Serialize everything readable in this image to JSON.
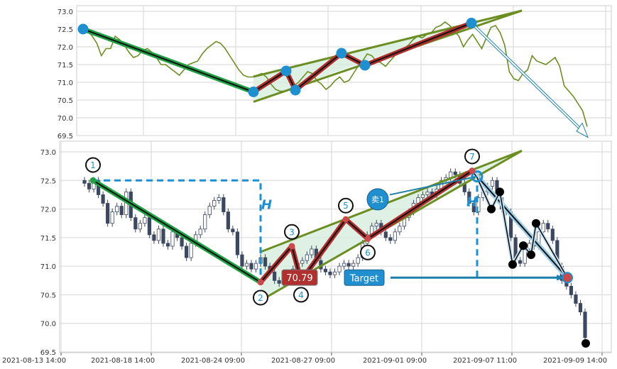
{
  "colors": {
    "green_line": "#6b8e23",
    "pattern_green": "#22a045",
    "pattern_red": "#b03030",
    "marker_blue": "#1f8fd0",
    "candle_dark": "#3c4860",
    "fill_light": "#d7eedf",
    "arrow_blue": "#1e7fa8",
    "grid": "#d6d6d6"
  },
  "chart_data": [
    {
      "type": "line",
      "title": "",
      "ylim": [
        69.5,
        73.0
      ],
      "yticks": [
        "73.0",
        "72.5",
        "72.0",
        "71.5",
        "71.0",
        "70.5",
        "70.0",
        "69.5"
      ],
      "series": [
        {
          "values": [
            72.5,
            72.45,
            72.3,
            72.1,
            71.75,
            71.95,
            71.95,
            72.3,
            72.2,
            72.05,
            71.85,
            71.7,
            71.75,
            71.9,
            71.95,
            71.85,
            71.7,
            71.5,
            71.5,
            71.4,
            71.3,
            71.2,
            71.35,
            71.5,
            71.55,
            71.6,
            71.8,
            71.95,
            72.05,
            72.15,
            72.1,
            71.95,
            71.75,
            71.55,
            71.35,
            71.2,
            71.15,
            71.15,
            71.2,
            71.25,
            71.15,
            70.95,
            70.8,
            70.75,
            70.75,
            70.8,
            70.9,
            71.0,
            71.15,
            71.3,
            71.25,
            71.05,
            70.95,
            70.8,
            70.9,
            71.05,
            71.15,
            71.0,
            71.05,
            71.25,
            71.45,
            71.6,
            71.8,
            71.75,
            71.6,
            71.55,
            71.45,
            71.6,
            71.75,
            71.9,
            71.95,
            72.05,
            72.2,
            72.3,
            72.25,
            72.35,
            72.4,
            72.55,
            72.6,
            72.7,
            72.6,
            72.45,
            72.3,
            72.0,
            72.2,
            72.35,
            72.15,
            71.95,
            72.25,
            72.55,
            72.6,
            72.4,
            72.05,
            71.3,
            71.1,
            71.05,
            71.25,
            71.35,
            71.75,
            71.6,
            71.55,
            71.5,
            71.6,
            71.7,
            71.45,
            70.9,
            70.75,
            70.6,
            70.4,
            70.2,
            69.75
          ]
        }
      ],
      "pattern": {
        "points": [
          [
            72.5
          ],
          [
            70.73
          ],
          [
            71.32
          ],
          [
            70.78
          ],
          [
            71.82
          ],
          [
            71.48
          ],
          [
            72.67
          ]
        ],
        "target_arrow": true
      }
    },
    {
      "type": "candlestick",
      "title": "",
      "ylim": [
        69.5,
        73.0
      ],
      "yticks": [
        "73.0",
        "72.5",
        "72.0",
        "71.5",
        "71.0",
        "70.5",
        "70.0",
        "69.5"
      ],
      "xticks": [
        "2021-08-13 14:00",
        "2021-08-18 14:00",
        "2021-08-24 09:00",
        "2021-08-27 09:00",
        "2021-09-01 09:00",
        "2021-09-07 11:00",
        "2021-09-09 14:00"
      ],
      "closes": [
        72.45,
        72.35,
        72.5,
        72.25,
        72.1,
        71.75,
        71.95,
        72.05,
        71.9,
        72.3,
        71.85,
        71.65,
        71.75,
        71.85,
        71.55,
        71.45,
        71.65,
        71.4,
        71.35,
        71.6,
        71.5,
        71.35,
        71.15,
        71.4,
        71.55,
        71.65,
        71.9,
        72.05,
        72.15,
        72.2,
        71.95,
        71.65,
        71.6,
        71.2,
        71.0,
        71.05,
        70.95,
        71.05,
        71.15,
        71.0,
        70.9,
        70.75,
        70.7,
        70.75,
        70.85,
        70.95,
        71.05,
        71.1,
        71.2,
        71.3,
        71.1,
        70.95,
        70.9,
        70.85,
        70.9,
        71.0,
        71.05,
        71.0,
        71.05,
        71.15,
        71.4,
        71.55,
        71.7,
        71.75,
        71.6,
        71.5,
        71.45,
        71.6,
        71.7,
        71.85,
        71.95,
        72.1,
        72.2,
        72.25,
        72.3,
        72.25,
        72.35,
        72.5,
        72.55,
        72.65,
        72.6,
        72.45,
        72.3,
        72.1,
        71.95,
        72.2,
        72.3,
        72.4,
        72.5,
        72.2,
        72.0,
        71.95,
        71.5,
        71.1,
        71.05,
        71.3,
        71.4,
        71.35,
        71.6,
        71.75,
        71.65,
        71.45,
        71.0,
        70.75,
        70.65,
        70.5,
        70.35,
        70.2,
        69.75
      ],
      "pattern": {
        "points": [
          {
            "label": "1",
            "value": 72.5
          },
          {
            "label": "2",
            "value": 70.72
          },
          {
            "label": "3",
            "value": 71.35
          },
          {
            "label": "4",
            "value": 70.75
          },
          {
            "label": "5",
            "value": 71.82
          },
          {
            "label": "6",
            "value": 71.48
          },
          {
            "label": "7",
            "value": 72.67
          }
        ]
      },
      "annotations": {
        "price_label": "70.79",
        "sell_marker": "卖1",
        "target_label": "Target",
        "height_label": "H"
      }
    }
  ]
}
